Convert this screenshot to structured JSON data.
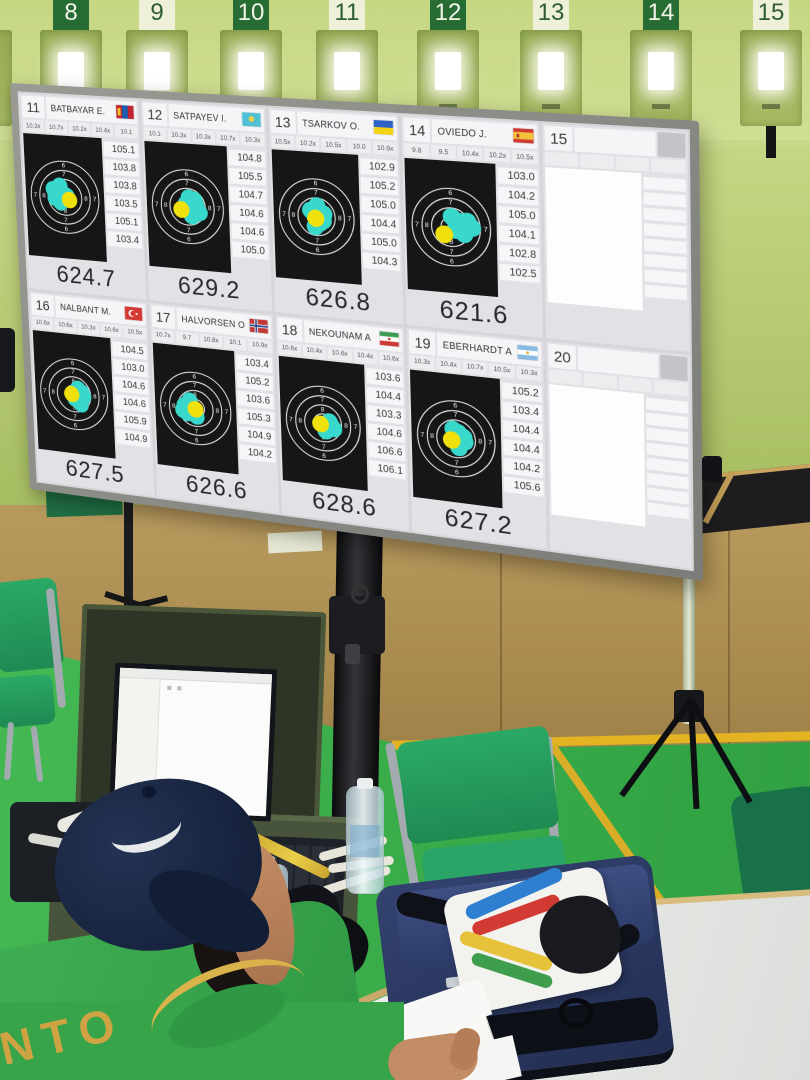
{
  "range": {
    "lane_plates": [
      {
        "label": "8",
        "shade": "dark"
      },
      {
        "label": "9",
        "shade": "light"
      },
      {
        "label": "10",
        "shade": "dark"
      },
      {
        "label": "11",
        "shade": "light"
      },
      {
        "label": "12",
        "shade": "dark"
      },
      {
        "label": "13",
        "shade": "light"
      },
      {
        "label": "14",
        "shade": "dark"
      },
      {
        "label": "15",
        "shade": "light"
      }
    ]
  },
  "official": {
    "shirt_text": "NTO"
  },
  "scoreboard": {
    "target_ring_numbers": {
      "top": [
        "6",
        "7",
        "8"
      ],
      "left": [
        "7",
        "8"
      ],
      "right": [
        "8",
        "7"
      ],
      "bottom": [
        "8",
        "7",
        "6"
      ]
    },
    "panels": [
      {
        "lane": "11",
        "name": "BATBAYAR E.",
        "flag": "mgl",
        "empty": false,
        "shots": [
          "10.3x",
          "10.7x",
          "10.2x",
          "10.4x",
          "10.1"
        ],
        "series": [
          "105.1",
          "103.8",
          "103.8",
          "103.5",
          "105.1",
          "103.4"
        ],
        "total": "624.7",
        "cluster": {
          "hits": [
            [
              -15,
              -9
            ],
            [
              -6,
              -14
            ],
            [
              -13,
              2
            ],
            [
              -2,
              -5
            ],
            [
              -6,
              7
            ],
            [
              3,
              -2
            ]
          ],
          "last": [
            6,
            3
          ]
        }
      },
      {
        "lane": "12",
        "name": "SATPAYEV I.",
        "flag": "kaz",
        "empty": false,
        "shots": [
          "10.1",
          "10.3x",
          "10.3x",
          "10.7x",
          "10.3x"
        ],
        "series": [
          "104.8",
          "105.5",
          "104.7",
          "104.6",
          "104.6",
          "105.0"
        ],
        "total": "629.2",
        "cluster": {
          "hits": [
            [
              2,
              -11
            ],
            [
              11,
              -3
            ],
            [
              15,
              6
            ],
            [
              5,
              11
            ],
            [
              -2,
              -3
            ],
            [
              9,
              -9
            ]
          ],
          "last": [
            -8,
            4
          ]
        }
      },
      {
        "lane": "13",
        "name": "TSARKOV O.",
        "flag": "ukr",
        "empty": false,
        "shots": [
          "10.5x",
          "10.2x",
          "10.5x",
          "10.0",
          "10.9x"
        ],
        "series": [
          "102.9",
          "105.2",
          "105.0",
          "104.4",
          "105.0",
          "104.3"
        ],
        "total": "626.8",
        "cluster": {
          "hits": [
            [
              1,
              -13
            ],
            [
              9,
              -4
            ],
            [
              -7,
              -7
            ],
            [
              4,
              7
            ],
            [
              -2,
              12
            ],
            [
              8,
              4
            ]
          ],
          "last": [
            -1,
            2
          ]
        }
      },
      {
        "lane": "14",
        "name": "OVIEDO J.",
        "flag": "esp",
        "empty": false,
        "shots": [
          "9.8",
          "9.5",
          "10.4x",
          "10.2x",
          "10.5x"
        ],
        "series": [
          "103.0",
          "104.2",
          "105.0",
          "104.1",
          "102.8",
          "102.5"
        ],
        "total": "621.6",
        "cluster": {
          "hits": [
            [
              1,
              -12
            ],
            [
              11,
              -7
            ],
            [
              24,
              -1
            ],
            [
              15,
              7
            ],
            [
              5,
              3
            ],
            [
              19,
              -8
            ]
          ],
          "last": [
            -8,
            9
          ]
        }
      },
      {
        "lane": "15",
        "name": "",
        "flag": "",
        "empty": true,
        "shots": [],
        "series": [],
        "total": "",
        "cluster": {
          "hits": [],
          "last": null
        }
      },
      {
        "lane": "16",
        "name": "NALBANT M.",
        "flag": "tur",
        "empty": false,
        "shots": [
          "10.6x",
          "10.6x",
          "10.3x",
          "10.6x",
          "10.5x"
        ],
        "series": [
          "104.5",
          "103.0",
          "104.6",
          "104.6",
          "105.9",
          "104.9"
        ],
        "total": "627.5",
        "cluster": {
          "hits": [
            [
              6,
              -8
            ],
            [
              13,
              1
            ],
            [
              9,
              12
            ],
            [
              1,
              6
            ],
            [
              11,
              -4
            ]
          ],
          "last": [
            -3,
            0
          ]
        }
      },
      {
        "lane": "17",
        "name": "HALVORSEN O",
        "flag": "nor",
        "empty": false,
        "shots": [
          "10.7x",
          "9.7",
          "10.8x",
          "10.1",
          "10.9x"
        ],
        "series": [
          "103.4",
          "105.2",
          "103.6",
          "105.3",
          "104.9",
          "104.2"
        ],
        "total": "626.6",
        "cluster": {
          "hits": [
            [
              -14,
              -2
            ],
            [
              -7,
              -9
            ],
            [
              -11,
              7
            ],
            [
              1,
              10
            ],
            [
              -16,
              4
            ]
          ],
          "last": [
            0,
            1
          ]
        }
      },
      {
        "lane": "18",
        "name": "NEKOUNAM A",
        "flag": "iri",
        "empty": false,
        "shots": [
          "10.6x",
          "10.4x",
          "10.6x",
          "10.4x",
          "10.6x"
        ],
        "series": [
          "103.6",
          "104.4",
          "103.3",
          "104.6",
          "106.6",
          "106.1"
        ],
        "total": "628.6",
        "cluster": {
          "hits": [
            [
              8,
              -3
            ],
            [
              13,
              5
            ],
            [
              3,
              9
            ],
            [
              10,
              1
            ]
          ],
          "last": [
            -3,
            1
          ]
        }
      },
      {
        "lane": "19",
        "name": "EBERHARDT A",
        "flag": "arg",
        "empty": false,
        "shots": [
          "10.3x",
          "10.4x",
          "10.7x",
          "10.5x",
          "10.3x"
        ],
        "series": [
          "105.2",
          "103.4",
          "104.4",
          "104.4",
          "104.2",
          "105.6"
        ],
        "total": "627.2",
        "cluster": {
          "hits": [
            [
              3,
              -8
            ],
            [
              10,
              2
            ],
            [
              3,
              10
            ],
            [
              -3,
              -11
            ],
            [
              9,
              -3
            ]
          ],
          "last": [
            -5,
            2
          ]
        }
      },
      {
        "lane": "20",
        "name": "",
        "flag": "",
        "empty": true,
        "shots": [],
        "series": [],
        "total": "",
        "cluster": {
          "hits": [],
          "last": null
        }
      }
    ]
  },
  "colors": {
    "shot_hit": "#38d8cd",
    "shot_last": "#f0e10e",
    "target_black": "#161616",
    "ring_line": "#e6e6e6",
    "floor_green": "#3cb24c",
    "wall_green": "#cbdc8e",
    "chair_green": "#2aa164",
    "shirt_green": "#3aa54d",
    "shirt_letters": "#cfa343",
    "bag_navy": "#2d3b66"
  }
}
